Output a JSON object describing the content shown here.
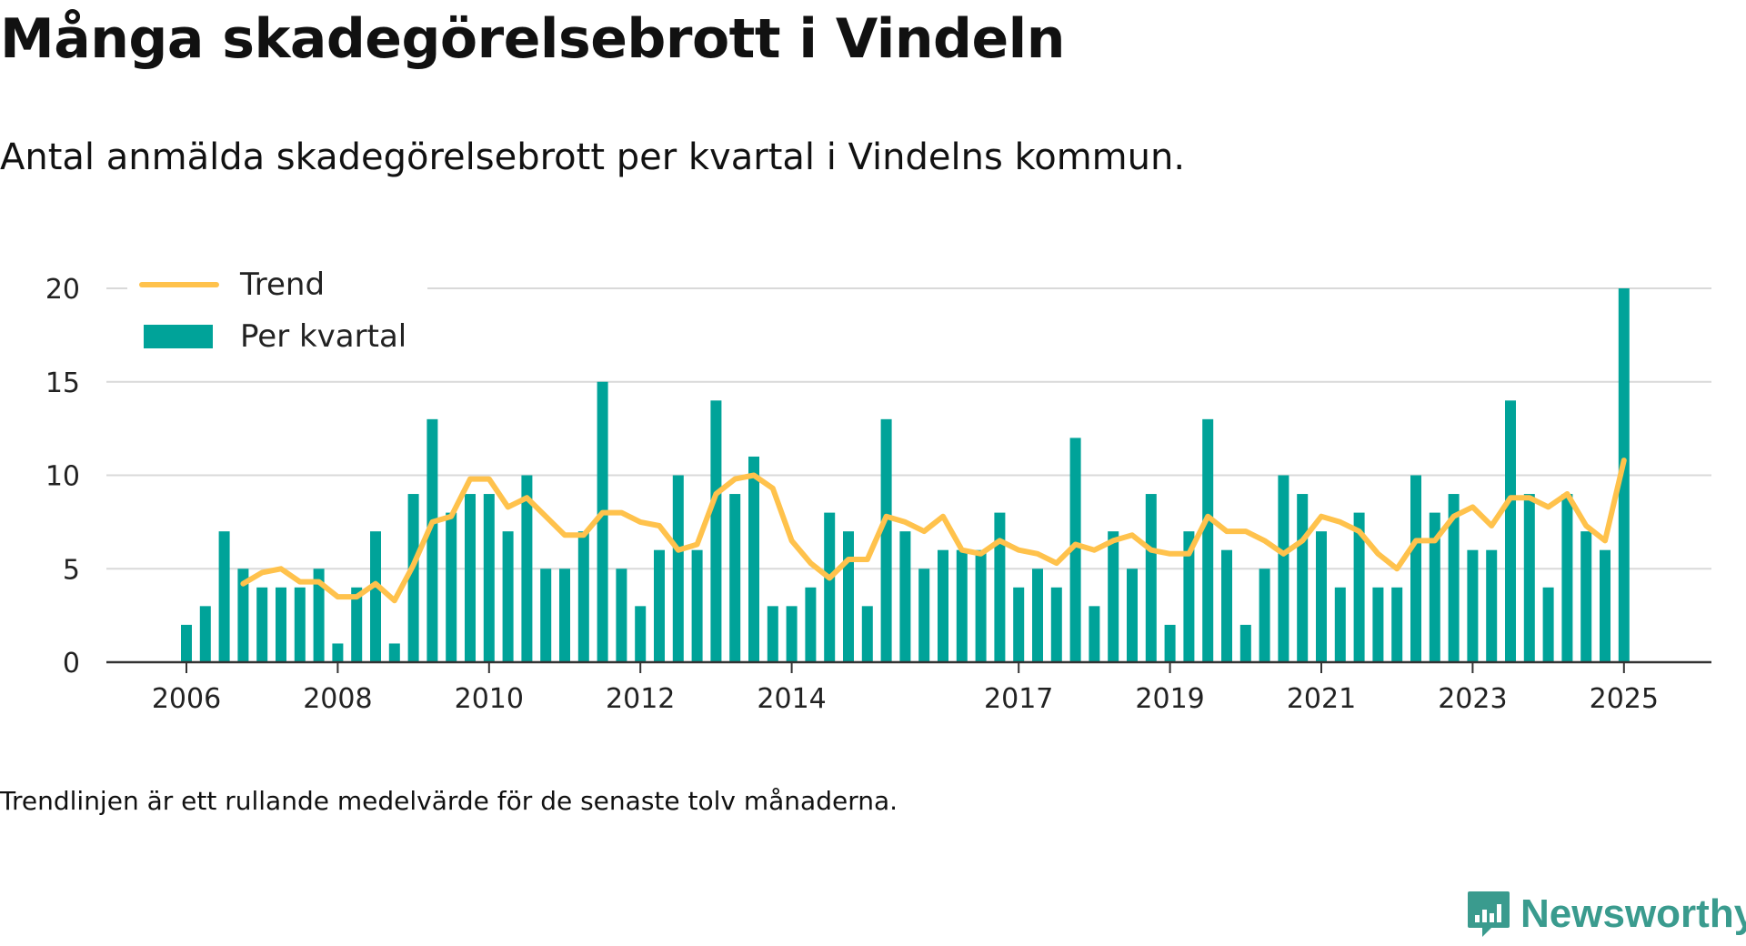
{
  "header": {
    "title": "Många skadegörelsebrott i Vindeln",
    "subtitle": "Antal anmälda skadegörelsebrott per kvartal i Vindelns kommun."
  },
  "footer": {
    "note": "Trendlinjen är ett rullande medelvärde för de senaste tolv månaderna.",
    "brand": "Newsworthy",
    "brand_icon": "newsworthy-logo-icon"
  },
  "colors": {
    "bar": "#00a399",
    "trend": "#ffc24c",
    "grid": "#d9d9d9",
    "axis": "#333333",
    "text": "#222222",
    "brand": "#3a9b8e"
  },
  "chart_data": {
    "type": "bar",
    "title": "Många skadegörelsebrott i Vindeln",
    "subtitle": "Antal anmälda skadegörelsebrott per kvartal i Vindelns kommun.",
    "xlabel": "",
    "ylabel": "",
    "ylim": [
      0,
      20
    ],
    "yticks": [
      0,
      5,
      10,
      15,
      20
    ],
    "grid": true,
    "legend_position": "top-left",
    "x_tick_labels": [
      {
        "label": "2006",
        "index": 0
      },
      {
        "label": "2008",
        "index": 8
      },
      {
        "label": "2010",
        "index": 16
      },
      {
        "label": "2012",
        "index": 24
      },
      {
        "label": "2014",
        "index": 32
      },
      {
        "label": "2017",
        "index": 44
      },
      {
        "label": "2019",
        "index": 52
      },
      {
        "label": "2021",
        "index": 60
      },
      {
        "label": "2023",
        "index": 68
      },
      {
        "label": "2025",
        "index": 76
      }
    ],
    "categories": [
      "2006 Q1",
      "2006 Q2",
      "2006 Q3",
      "2006 Q4",
      "2007 Q1",
      "2007 Q2",
      "2007 Q3",
      "2007 Q4",
      "2008 Q1",
      "2008 Q2",
      "2008 Q3",
      "2008 Q4",
      "2009 Q1",
      "2009 Q2",
      "2009 Q3",
      "2009 Q4",
      "2010 Q1",
      "2010 Q2",
      "2010 Q3",
      "2010 Q4",
      "2011 Q1",
      "2011 Q2",
      "2011 Q3",
      "2011 Q4",
      "2012 Q1",
      "2012 Q2",
      "2012 Q3",
      "2012 Q4",
      "2013 Q1",
      "2013 Q2",
      "2013 Q3",
      "2013 Q4",
      "2014 Q1",
      "2014 Q2",
      "2014 Q3",
      "2014 Q4",
      "2015 Q1",
      "2015 Q2",
      "2015 Q3",
      "2015 Q4",
      "2016 Q1",
      "2016 Q2",
      "2016 Q3",
      "2016 Q4",
      "2017 Q1",
      "2017 Q2",
      "2017 Q3",
      "2017 Q4",
      "2018 Q1",
      "2018 Q2",
      "2018 Q3",
      "2018 Q4",
      "2019 Q1",
      "2019 Q2",
      "2019 Q3",
      "2019 Q4",
      "2020 Q1",
      "2020 Q2",
      "2020 Q3",
      "2020 Q4",
      "2021 Q1",
      "2021 Q2",
      "2021 Q3",
      "2021 Q4",
      "2022 Q1",
      "2022 Q2",
      "2022 Q3",
      "2022 Q4",
      "2023 Q1",
      "2023 Q2",
      "2023 Q3",
      "2023 Q4",
      "2024 Q1",
      "2024 Q2",
      "2024 Q3",
      "2024 Q4",
      "2025 Q1"
    ],
    "series": [
      {
        "name": "Per kvartal",
        "type": "bar",
        "values": [
          2,
          3,
          7,
          5,
          4,
          4,
          4,
          5,
          1,
          4,
          7,
          1,
          9,
          13,
          8,
          9,
          9,
          7,
          10,
          5,
          5,
          7,
          15,
          5,
          3,
          6,
          10,
          6,
          14,
          9,
          11,
          3,
          3,
          4,
          8,
          7,
          3,
          13,
          7,
          5,
          6,
          6,
          6,
          8,
          4,
          5,
          4,
          12,
          3,
          7,
          5,
          9,
          2,
          7,
          13,
          6,
          2,
          5,
          10,
          9,
          7,
          4,
          8,
          4,
          4,
          10,
          8,
          9,
          6,
          6,
          14,
          9,
          4,
          9,
          7,
          6,
          20
        ]
      },
      {
        "name": "Trend",
        "type": "line",
        "values": [
          null,
          null,
          null,
          4.2,
          4.8,
          5.0,
          4.3,
          4.3,
          3.5,
          3.5,
          4.2,
          3.3,
          5.2,
          7.5,
          7.8,
          9.8,
          9.8,
          8.3,
          8.8,
          7.8,
          6.8,
          6.8,
          8.0,
          8.0,
          7.5,
          7.3,
          6.0,
          6.3,
          9.0,
          9.8,
          10.0,
          9.3,
          6.5,
          5.3,
          4.5,
          5.5,
          5.5,
          7.8,
          7.5,
          7.0,
          7.8,
          6.0,
          5.8,
          6.5,
          6.0,
          5.8,
          5.3,
          6.3,
          6.0,
          6.5,
          6.8,
          6.0,
          5.8,
          5.8,
          7.8,
          7.0,
          7.0,
          6.5,
          5.8,
          6.5,
          7.8,
          7.5,
          7.0,
          5.8,
          5.0,
          6.5,
          6.5,
          7.8,
          8.3,
          7.3,
          8.8,
          8.8,
          8.3,
          9.0,
          7.3,
          6.5,
          10.8
        ]
      }
    ],
    "legend": [
      {
        "label": "Trend",
        "kind": "line"
      },
      {
        "label": "Per kvartal",
        "kind": "bar"
      }
    ]
  }
}
